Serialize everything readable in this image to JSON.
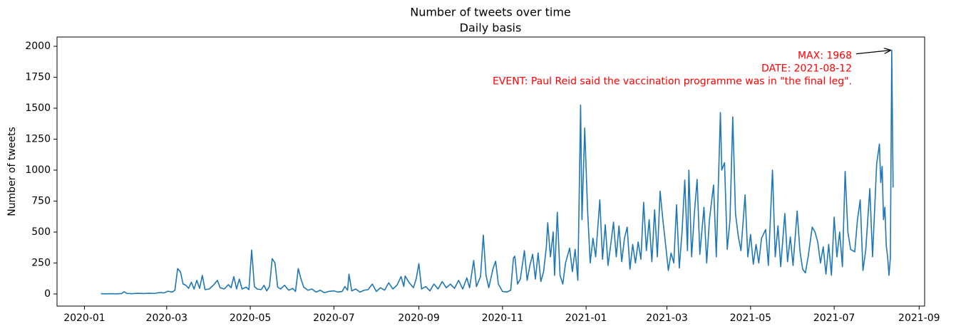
{
  "chart_data": {
    "type": "line",
    "title": "Number of tweets over time",
    "subtitle": "Daily basis",
    "y_label": "Number of tweets",
    "color": "#1f77b4",
    "x": [
      "2020-01-13",
      "2020-01-16",
      "2020-01-20",
      "2020-01-24",
      "2020-01-28",
      "2020-01-30",
      "2020-02-01",
      "2020-02-05",
      "2020-02-09",
      "2020-02-13",
      "2020-02-17",
      "2020-02-21",
      "2020-02-25",
      "2020-02-28",
      "2020-03-02",
      "2020-03-05",
      "2020-03-07",
      "2020-03-09",
      "2020-03-11",
      "2020-03-13",
      "2020-03-15",
      "2020-03-17",
      "2020-03-19",
      "2020-03-21",
      "2020-03-23",
      "2020-03-25",
      "2020-03-27",
      "2020-03-29",
      "2020-04-01",
      "2020-04-04",
      "2020-04-07",
      "2020-04-09",
      "2020-04-12",
      "2020-04-15",
      "2020-04-17",
      "2020-04-19",
      "2020-04-21",
      "2020-04-23",
      "2020-04-25",
      "2020-04-28",
      "2020-04-30",
      "2020-05-02",
      "2020-05-04",
      "2020-05-06",
      "2020-05-09",
      "2020-05-11",
      "2020-05-13",
      "2020-05-15",
      "2020-05-17",
      "2020-05-19",
      "2020-05-21",
      "2020-05-23",
      "2020-05-26",
      "2020-05-29",
      "2020-06-01",
      "2020-06-03",
      "2020-06-05",
      "2020-06-07",
      "2020-06-09",
      "2020-06-12",
      "2020-06-15",
      "2020-06-18",
      "2020-06-21",
      "2020-06-24",
      "2020-06-27",
      "2020-07-01",
      "2020-07-04",
      "2020-07-07",
      "2020-07-09",
      "2020-07-11",
      "2020-07-12",
      "2020-07-14",
      "2020-07-17",
      "2020-07-20",
      "2020-07-23",
      "2020-07-26",
      "2020-07-29",
      "2020-08-01",
      "2020-08-04",
      "2020-08-07",
      "2020-08-10",
      "2020-08-13",
      "2020-08-16",
      "2020-08-19",
      "2020-08-21",
      "2020-08-22",
      "2020-08-25",
      "2020-08-28",
      "2020-08-30",
      "2020-09-01",
      "2020-09-03",
      "2020-09-06",
      "2020-09-09",
      "2020-09-12",
      "2020-09-15",
      "2020-09-18",
      "2020-09-21",
      "2020-09-24",
      "2020-09-27",
      "2020-09-30",
      "2020-10-03",
      "2020-10-06",
      "2020-10-08",
      "2020-10-11",
      "2020-10-13",
      "2020-10-16",
      "2020-10-18",
      "2020-10-20",
      "2020-10-22",
      "2020-10-25",
      "2020-10-27",
      "2020-10-29",
      "2020-11-01",
      "2020-11-04",
      "2020-11-07",
      "2020-11-09",
      "2020-11-10",
      "2020-11-12",
      "2020-11-14",
      "2020-11-17",
      "2020-11-19",
      "2020-11-21",
      "2020-11-23",
      "2020-11-25",
      "2020-11-27",
      "2020-11-29",
      "2020-12-01",
      "2020-12-03",
      "2020-12-04",
      "2020-12-06",
      "2020-12-08",
      "2020-12-09",
      "2020-12-11",
      "2020-12-13",
      "2020-12-15",
      "2020-12-17",
      "2020-12-20",
      "2020-12-22",
      "2020-12-24",
      "2020-12-26",
      "2020-12-28",
      "2020-12-29",
      "2020-12-31",
      "2021-01-02",
      "2021-01-04",
      "2021-01-06",
      "2021-01-08",
      "2021-01-11",
      "2021-01-13",
      "2021-01-15",
      "2021-01-17",
      "2021-01-19",
      "2021-01-21",
      "2021-01-23",
      "2021-01-25",
      "2021-01-27",
      "2021-01-29",
      "2021-01-31",
      "2021-02-02",
      "2021-02-04",
      "2021-02-06",
      "2021-02-08",
      "2021-02-10",
      "2021-02-12",
      "2021-02-14",
      "2021-02-16",
      "2021-02-18",
      "2021-02-20",
      "2021-02-22",
      "2021-02-24",
      "2021-02-26",
      "2021-02-28",
      "2021-03-02",
      "2021-03-04",
      "2021-03-06",
      "2021-03-08",
      "2021-03-10",
      "2021-03-12",
      "2021-03-14",
      "2021-03-16",
      "2021-03-17",
      "2021-03-19",
      "2021-03-21",
      "2021-03-23",
      "2021-03-25",
      "2021-03-28",
      "2021-03-30",
      "2021-04-01",
      "2021-04-04",
      "2021-04-06",
      "2021-04-09",
      "2021-04-10",
      "2021-04-12",
      "2021-04-14",
      "2021-04-16",
      "2021-04-18",
      "2021-04-20",
      "2021-04-22",
      "2021-04-24",
      "2021-04-27",
      "2021-04-29",
      "2021-05-01",
      "2021-05-03",
      "2021-05-05",
      "2021-05-07",
      "2021-05-09",
      "2021-05-12",
      "2021-05-14",
      "2021-05-17",
      "2021-05-19",
      "2021-05-21",
      "2021-05-23",
      "2021-05-26",
      "2021-05-28",
      "2021-05-30",
      "2021-06-01",
      "2021-06-04",
      "2021-06-06",
      "2021-06-08",
      "2021-06-10",
      "2021-06-12",
      "2021-06-15",
      "2021-06-17",
      "2021-06-19",
      "2021-06-21",
      "2021-06-23",
      "2021-06-25",
      "2021-06-27",
      "2021-06-29",
      "2021-07-01",
      "2021-07-03",
      "2021-07-05",
      "2021-07-07",
      "2021-07-09",
      "2021-07-11",
      "2021-07-13",
      "2021-07-16",
      "2021-07-18",
      "2021-07-20",
      "2021-07-22",
      "2021-07-24",
      "2021-07-27",
      "2021-07-29",
      "2021-08-01",
      "2021-08-03",
      "2021-08-04",
      "2021-08-05",
      "2021-08-06",
      "2021-08-07",
      "2021-08-08",
      "2021-08-09",
      "2021-08-10",
      "2021-08-11",
      "2021-08-12",
      "2021-08-13"
    ],
    "values": [
      2,
      1,
      2,
      1,
      3,
      18,
      4,
      2,
      5,
      3,
      6,
      4,
      12,
      8,
      22,
      15,
      30,
      205,
      180,
      80,
      70,
      45,
      95,
      40,
      110,
      45,
      150,
      35,
      40,
      70,
      110,
      50,
      40,
      75,
      50,
      140,
      40,
      120,
      40,
      55,
      35,
      355,
      60,
      40,
      35,
      70,
      25,
      60,
      285,
      250,
      55,
      40,
      70,
      30,
      45,
      20,
      205,
      120,
      55,
      30,
      40,
      15,
      30,
      10,
      20,
      25,
      15,
      20,
      60,
      30,
      160,
      25,
      40,
      15,
      30,
      35,
      80,
      20,
      50,
      30,
      90,
      40,
      70,
      140,
      60,
      145,
      90,
      50,
      120,
      245,
      40,
      60,
      25,
      80,
      40,
      100,
      50,
      80,
      45,
      110,
      40,
      130,
      50,
      270,
      60,
      140,
      475,
      150,
      50,
      200,
      265,
      80,
      20,
      15,
      30,
      290,
      305,
      80,
      120,
      350,
      110,
      230,
      320,
      120,
      330,
      100,
      180,
      380,
      575,
      300,
      500,
      150,
      660,
      150,
      80,
      250,
      370,
      180,
      360,
      110,
      1525,
      600,
      1340,
      700,
      250,
      450,
      300,
      760,
      280,
      560,
      230,
      400,
      580,
      300,
      550,
      260,
      450,
      540,
      200,
      400,
      250,
      420,
      280,
      740,
      350,
      600,
      260,
      680,
      300,
      830,
      600,
      400,
      190,
      330,
      250,
      720,
      210,
      500,
      920,
      350,
      1000,
      300,
      650,
      925,
      320,
      700,
      250,
      600,
      880,
      300,
      1465,
      1000,
      1060,
      360,
      600,
      1430,
      650,
      470,
      350,
      800,
      300,
      480,
      240,
      400,
      250,
      450,
      520,
      230,
      1000,
      300,
      550,
      220,
      650,
      260,
      460,
      230,
      670,
      350,
      200,
      170,
      300,
      540,
      500,
      420,
      250,
      380,
      160,
      400,
      150,
      620,
      300,
      500,
      220,
      990,
      500,
      360,
      340,
      600,
      760,
      190,
      350,
      850,
      300,
      1050,
      1210,
      900,
      1030,
      600,
      700,
      390,
      300,
      150,
      290,
      1968,
      860
    ],
    "xlim": [
      "2019-12-12",
      "2021-09-05"
    ],
    "xticks": [
      {
        "value": "2020-01-01",
        "label": "2020-01"
      },
      {
        "value": "2020-03-01",
        "label": "2020-03"
      },
      {
        "value": "2020-05-01",
        "label": "2020-05"
      },
      {
        "value": "2020-07-01",
        "label": "2020-07"
      },
      {
        "value": "2020-09-01",
        "label": "2020-09"
      },
      {
        "value": "2020-11-01",
        "label": "2020-11"
      },
      {
        "value": "2021-01-01",
        "label": "2021-01"
      },
      {
        "value": "2021-03-01",
        "label": "2021-03"
      },
      {
        "value": "2021-05-01",
        "label": "2021-05"
      },
      {
        "value": "2021-07-01",
        "label": "2021-07"
      },
      {
        "value": "2021-09-01",
        "label": "2021-09"
      }
    ],
    "ylim": [
      -98,
      2075
    ],
    "yticks": [
      0,
      250,
      500,
      750,
      1000,
      1250,
      1500,
      1750,
      2000
    ],
    "grid": false,
    "annotation": {
      "lines": [
        "MAX: 1968",
        "DATE: 2021-08-12",
        "EVENT: Paul Reid said the vaccination programme was in \"the final leg\"."
      ],
      "x": "2021-08-12",
      "y": 1968,
      "color": "#ff0000"
    }
  }
}
